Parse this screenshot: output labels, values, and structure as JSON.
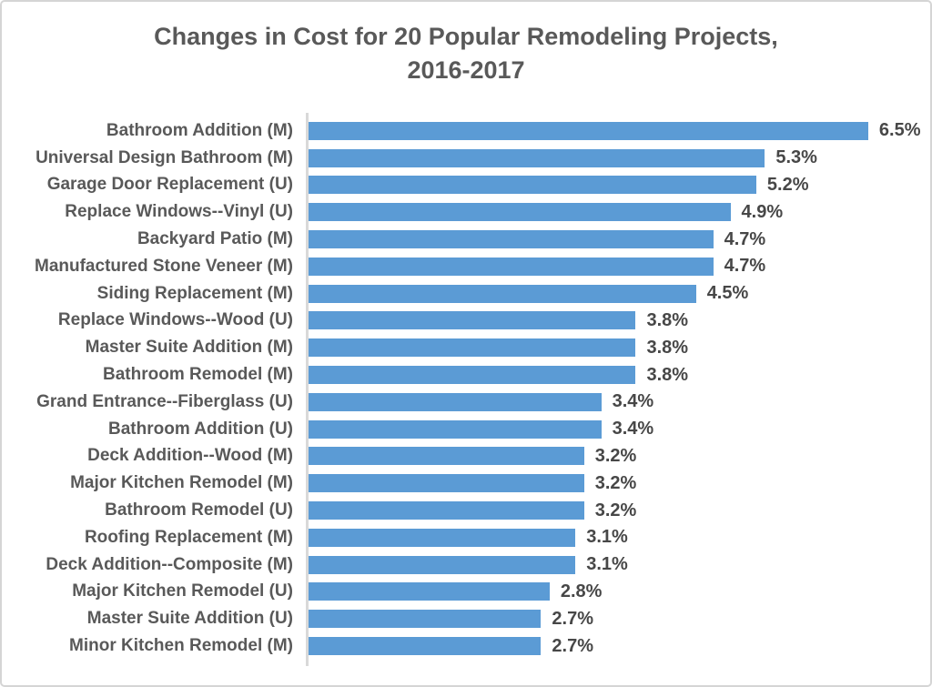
{
  "title": {
    "line1": "Changes in Cost for 20 Popular Remodeling Projects,",
    "line2": "2016-2017"
  },
  "chart_data": {
    "type": "bar",
    "orientation": "horizontal",
    "title": "Changes in Cost for 20 Popular Remodeling Projects, 2016-2017",
    "xlabel": "",
    "ylabel": "",
    "xlim": [
      0,
      7
    ],
    "grid": false,
    "legend_position": "none",
    "bar_color": "#5b9bd5",
    "axis_line_color": "#d9d9d9",
    "title_color": "#595959",
    "label_color": "#595959",
    "value_label_color": "#474747",
    "categories": [
      "Bathroom Addition (M)",
      "Universal Design Bathroom (M)",
      "Garage Door Replacement (U)",
      "Replace Windows--Vinyl (U)",
      "Backyard Patio (M)",
      "Manufactured Stone Veneer (M)",
      "Siding Replacement (M)",
      "Replace Windows--Wood (U)",
      "Master Suite Addition (M)",
      "Bathroom Remodel (M)",
      "Grand Entrance--Fiberglass (U)",
      "Bathroom Addition (U)",
      "Deck Addition--Wood (M)",
      "Major Kitchen Remodel (M)",
      "Bathroom Remodel (U)",
      "Roofing Replacement (M)",
      "Deck Addition--Composite (M)",
      "Major Kitchen Remodel (U)",
      "Master Suite Addition (U)",
      "Minor Kitchen Remodel (M)"
    ],
    "values": [
      6.5,
      5.3,
      5.2,
      4.9,
      4.7,
      4.7,
      4.5,
      3.8,
      3.8,
      3.8,
      3.4,
      3.4,
      3.2,
      3.2,
      3.2,
      3.1,
      3.1,
      2.8,
      2.7,
      2.7
    ],
    "value_labels": [
      "6.5%",
      "5.3%",
      "5.2%",
      "4.9%",
      "4.7%",
      "4.7%",
      "4.5%",
      "3.8%",
      "3.8%",
      "3.8%",
      "3.4%",
      "3.4%",
      "3.2%",
      "3.2%",
      "3.2%",
      "3.1%",
      "3.1%",
      "2.8%",
      "2.7%",
      "2.7%"
    ]
  }
}
